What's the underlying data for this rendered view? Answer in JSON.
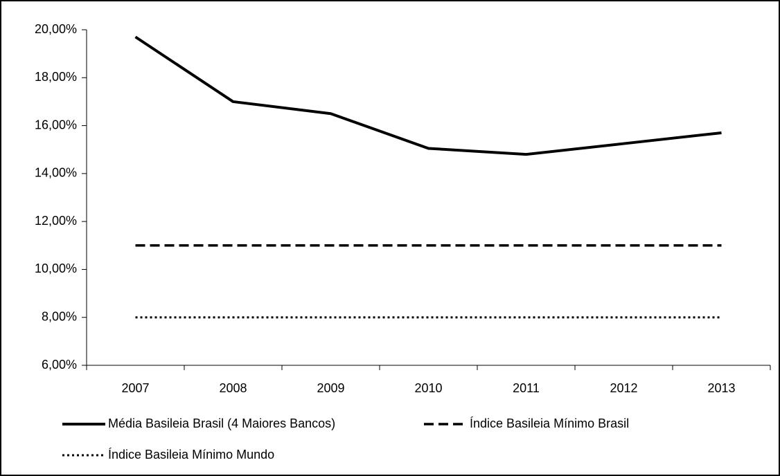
{
  "chart_data": {
    "type": "line",
    "categories": [
      "2007",
      "2008",
      "2009",
      "2010",
      "2011",
      "2012",
      "2013"
    ],
    "series": [
      {
        "name": "Média Basileia Brasil (4 Maiores Bancos)",
        "color": "#000000",
        "dash": "solid",
        "values": [
          19.7,
          17.0,
          16.5,
          15.05,
          14.8,
          15.25,
          15.7
        ]
      },
      {
        "name": "Índice Basileia Mínimo Brasil",
        "color": "#000000",
        "dash": "dashed",
        "values": [
          11,
          11,
          11,
          11,
          11,
          11,
          11
        ]
      },
      {
        "name": "Índice Basileia Mínimo Mundo",
        "color": "#000000",
        "dash": "dotted",
        "values": [
          8,
          8,
          8,
          8,
          8,
          8,
          8
        ]
      }
    ],
    "ylim": [
      6,
      20
    ],
    "yticks": [
      {
        "value": 6,
        "label": "6,00%"
      },
      {
        "value": 8,
        "label": "8,00%"
      },
      {
        "value": 10,
        "label": "10,00%"
      },
      {
        "value": 12,
        "label": "12,00%"
      },
      {
        "value": 14,
        "label": "14,00%"
      },
      {
        "value": 16,
        "label": "16,00%"
      },
      {
        "value": 18,
        "label": "18,00%"
      },
      {
        "value": 20,
        "label": "20,00%"
      }
    ],
    "grid": false,
    "legend": "bottom"
  }
}
